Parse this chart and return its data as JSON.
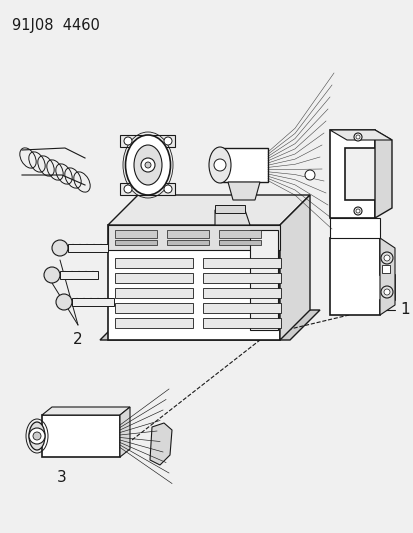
{
  "title_code": "91J08  4460",
  "background_color": "#f0f0f0",
  "line_color": "#1a1a1a",
  "label_1": "1",
  "label_2": "2",
  "label_3": "3",
  "fig_width": 4.14,
  "fig_height": 5.33,
  "dpi": 100
}
